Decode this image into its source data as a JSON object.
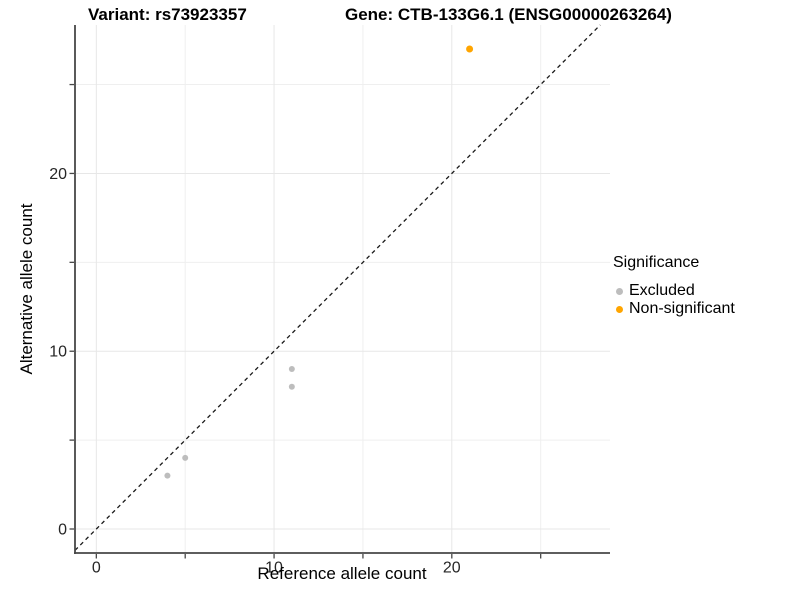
{
  "header": {
    "variant_title": "Variant: rs73923357",
    "gene_title": "Gene: CTB-133G6.1 (ENSG00000263264)"
  },
  "chart_data": {
    "type": "scatter",
    "title_left": "Variant: rs73923357",
    "title_right": "Gene: CTB-133G6.1 (ENSG00000263264)",
    "xlabel": "Reference allele count",
    "ylabel": "Alternative allele count",
    "xlim": [
      -1.2,
      28.9
    ],
    "ylim": [
      -1.35,
      28.35
    ],
    "ticks_major": [
      0,
      10,
      20
    ],
    "ticks_minor": [
      5,
      15,
      25
    ],
    "tick_labels": [
      "0",
      "10",
      "20"
    ],
    "grid": true,
    "grid_major_color": "#e7e7e7",
    "grid_minor_color": "#efefef",
    "axis_color": "#474747",
    "tick_label_color": "#262626",
    "identity_line": {
      "style": "dashed",
      "color": "#1a1a1a"
    },
    "legend_title": "Significance",
    "legend_position": "right",
    "series": [
      {
        "name": "Excluded",
        "color": "#bdbdbd",
        "point_radius": 3.0,
        "points": [
          [
            4,
            3
          ],
          [
            5,
            4
          ],
          [
            11,
            8
          ],
          [
            11,
            9
          ]
        ]
      },
      {
        "name": "Non-significant",
        "color": "#FFA500",
        "point_radius": 3.5,
        "points": [
          [
            21,
            27
          ]
        ]
      }
    ]
  }
}
